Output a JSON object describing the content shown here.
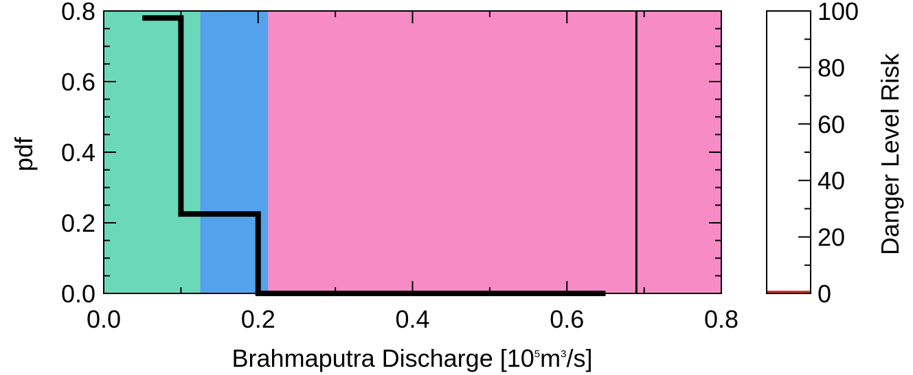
{
  "chart_data": [
    {
      "type": "line",
      "title": "",
      "xlabel": {
        "prefix": "Brahmaputra Discharge [10",
        "sup1": "5",
        "middle": "m",
        "sup2": "3",
        "suffix": "/s]"
      },
      "ylabel": "pdf",
      "xlim": [
        0.0,
        0.8
      ],
      "ylim": [
        0.0,
        0.8
      ],
      "x_ticks": [
        "0.0",
        "0.2",
        "0.4",
        "0.6",
        "0.8"
      ],
      "y_ticks": [
        "0.0",
        "0.2",
        "0.4",
        "0.6",
        "0.8"
      ],
      "background_bands": [
        {
          "x_range": [
            0.0,
            0.125
          ],
          "color": "#6bd9b9"
        },
        {
          "x_range": [
            0.125,
            0.213
          ],
          "color": "#54a2ec"
        },
        {
          "x_range": [
            0.213,
            0.8
          ],
          "color": "#f78bc6"
        }
      ],
      "vertical_line_x": 0.69,
      "series": [
        {
          "color": "#000000",
          "step_points": [
            [
              0.05,
              0.78
            ],
            [
              0.1,
              0.78
            ],
            [
              0.1,
              0.225
            ],
            [
              0.2,
              0.225
            ],
            [
              0.2,
              0.0
            ],
            [
              0.65,
              0.0
            ]
          ]
        }
      ]
    },
    {
      "type": "bar",
      "title": "",
      "ylabel": "Danger Level Risk",
      "ylim": [
        0,
        100
      ],
      "y_ticks": [
        "0",
        "20",
        "40",
        "60",
        "80",
        "100"
      ],
      "values": [
        0
      ],
      "value_color": "#e03020"
    }
  ]
}
